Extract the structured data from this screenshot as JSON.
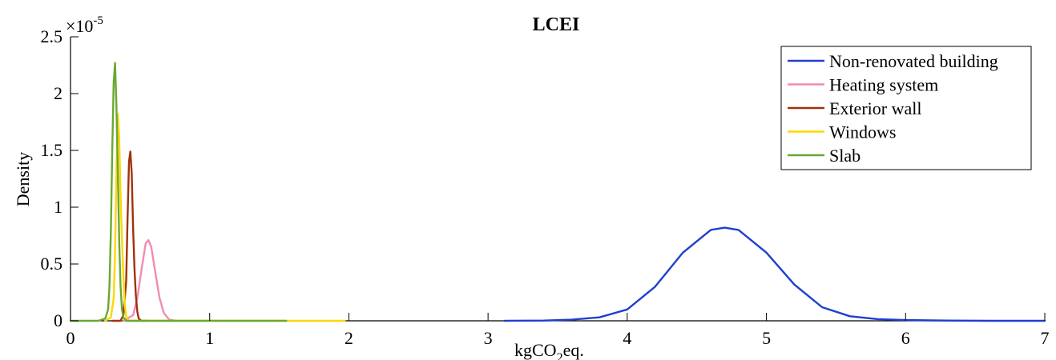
{
  "chart_data": {
    "type": "line",
    "title": "LCEI",
    "xlabel": {
      "base": "kgCO",
      "sub": "2",
      "tail": "eq."
    },
    "ylabel": "Density",
    "y_exponent": {
      "prefix": "×10",
      "power": "-5"
    },
    "xlim": [
      0,
      7
    ],
    "ylim": [
      0,
      2.5
    ],
    "x_ticks": [
      0,
      1,
      2,
      3,
      4,
      5,
      6,
      7
    ],
    "y_ticks": [
      0,
      0.5,
      1,
      1.5,
      2,
      2.5
    ],
    "y_tick_labels": [
      "0",
      "0.5",
      "1",
      "1.5",
      "2",
      "2.5"
    ],
    "grid": false,
    "legend_position": "top-right",
    "series": [
      {
        "name": "Non-renovated building",
        "color": "#1f3fcf",
        "x": [
          3.12,
          3.4,
          3.6,
          3.8,
          4.0,
          4.2,
          4.4,
          4.6,
          4.7,
          4.8,
          5.0,
          5.2,
          5.4,
          5.6,
          5.8,
          6.0,
          6.3,
          6.6,
          7.0
        ],
        "y": [
          0.0,
          0.002,
          0.01,
          0.03,
          0.1,
          0.3,
          0.6,
          0.8,
          0.82,
          0.8,
          0.6,
          0.32,
          0.12,
          0.04,
          0.015,
          0.006,
          0.002,
          0.0,
          0.0
        ]
      },
      {
        "name": "Heating system",
        "color": "#f08cb4",
        "x": [
          0.38,
          0.45,
          0.48,
          0.51,
          0.54,
          0.56,
          0.58,
          0.61,
          0.64,
          0.67,
          0.71,
          0.76
        ],
        "y": [
          0.0,
          0.05,
          0.2,
          0.45,
          0.68,
          0.71,
          0.65,
          0.42,
          0.2,
          0.07,
          0.01,
          0.0
        ]
      },
      {
        "name": "Exterior wall",
        "color": "#a0320a",
        "x": [
          0.3,
          0.36,
          0.38,
          0.4,
          0.41,
          0.42,
          0.43,
          0.44,
          0.45,
          0.46,
          0.47,
          0.48,
          0.49,
          0.51,
          0.55
        ],
        "y": [
          0.0,
          0.0,
          0.05,
          0.35,
          0.9,
          1.4,
          1.49,
          1.3,
          0.8,
          0.45,
          0.22,
          0.08,
          0.02,
          0.0,
          0.0
        ]
      },
      {
        "name": "Windows",
        "color": "#ffd700",
        "x": [
          0.25,
          0.29,
          0.31,
          0.32,
          0.33,
          0.34,
          0.35,
          0.36,
          0.37,
          0.38,
          0.39,
          0.4,
          0.42,
          0.5,
          1.0,
          1.5,
          1.97
        ],
        "y": [
          0.0,
          0.03,
          0.2,
          0.6,
          1.3,
          1.82,
          1.6,
          1.1,
          0.7,
          0.4,
          0.15,
          0.03,
          0.0,
          0.0,
          0.0,
          0.0,
          0.0
        ]
      },
      {
        "name": "Slab",
        "color": "#6aa832",
        "x": [
          0.0,
          0.2,
          0.25,
          0.27,
          0.28,
          0.29,
          0.3,
          0.31,
          0.32,
          0.33,
          0.34,
          0.35,
          0.36,
          0.37,
          0.38,
          0.4,
          0.45,
          1.0,
          1.55
        ],
        "y": [
          0.0,
          0.0,
          0.02,
          0.1,
          0.3,
          0.8,
          1.5,
          2.1,
          2.27,
          1.9,
          1.3,
          0.7,
          0.3,
          0.1,
          0.03,
          0.0,
          0.0,
          0.0,
          0.0
        ]
      }
    ]
  }
}
